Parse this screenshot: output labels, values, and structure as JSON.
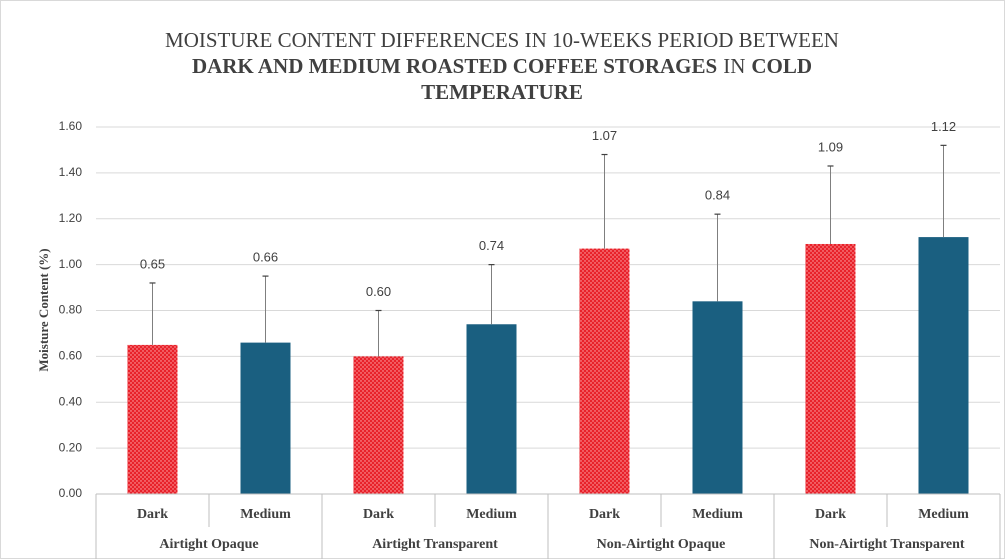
{
  "chart_data": {
    "type": "bar",
    "title_lines": [
      [
        {
          "text": "MOISTURE CONTENT DIFFERENCES IN 10-WEEKS PERIOD BETWEEN",
          "bold": false
        }
      ],
      [
        {
          "text": "DARK AND MEDIUM ROASTED COFFEE STORAGES",
          "bold": true
        },
        {
          "text": "IN",
          "bold": false
        },
        {
          "text": "COLD",
          "bold": true
        }
      ],
      [
        {
          "text": "TEMPERATURE",
          "bold": true
        }
      ]
    ],
    "y_label": "Moisture Content (%)",
    "categories": [
      "Dark",
      "Medium",
      "Dark",
      "Medium",
      "Dark",
      "Medium",
      "Dark",
      "Medium"
    ],
    "groups": [
      "Airtight Opaque",
      "Airtight Transparent",
      "Non-Airtight Opaque",
      "Non-Airtight Transparent"
    ],
    "values": [
      0.65,
      0.66,
      0.6,
      0.74,
      1.07,
      0.84,
      1.09,
      1.12
    ],
    "value_labels": [
      "0.65",
      "0.66",
      "0.60",
      "0.74",
      "1.07",
      "0.84",
      "1.09",
      "1.12"
    ],
    "errors": [
      0.27,
      0.29,
      0.2,
      0.26,
      0.41,
      0.38,
      0.34,
      0.4
    ],
    "colors": [
      "#e8212a",
      "#1a5f80",
      "#e8212a",
      "#1a5f80",
      "#e8212a",
      "#1a5f80",
      "#e8212a",
      "#1a5f80"
    ],
    "patterns": [
      "dots",
      "solid",
      "dots",
      "solid",
      "dots",
      "solid",
      "dots",
      "solid"
    ],
    "ylim": [
      0,
      1.6
    ],
    "yticks": [
      {
        "value": 0,
        "label": "0.00"
      },
      {
        "value": 0.2,
        "label": "0.20"
      },
      {
        "value": 0.4,
        "label": "0.40"
      },
      {
        "value": 0.6,
        "label": "0.60"
      },
      {
        "value": 0.8,
        "label": "0.80"
      },
      {
        "value": 1,
        "label": "1.00"
      },
      {
        "value": 1.2,
        "label": "1.20"
      },
      {
        "value": 1.4,
        "label": "1.40"
      },
      {
        "value": 1.6,
        "label": "1.60"
      }
    ],
    "grid": true
  }
}
